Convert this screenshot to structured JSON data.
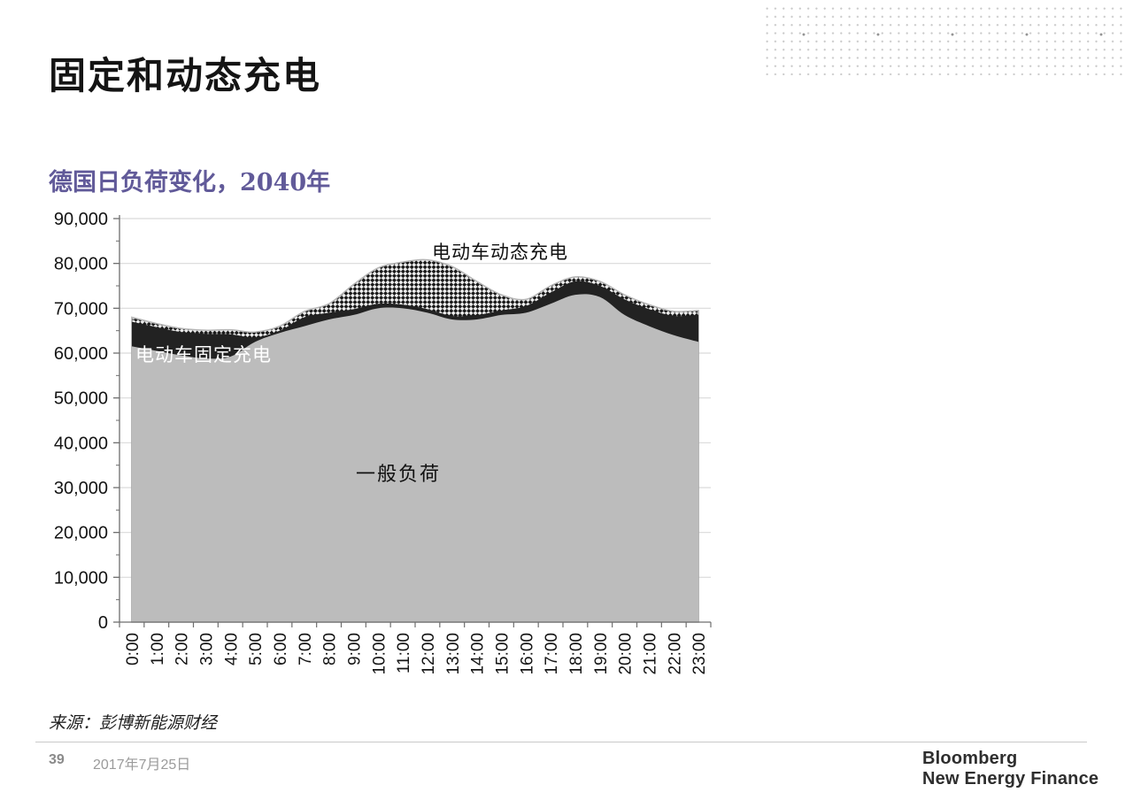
{
  "slide": {
    "title": "固定和动态充电",
    "subtitle": "德国日负荷变化，2040年",
    "source": "来源：彭博新能源财经",
    "footer": {
      "page_number": "39",
      "date": "2017年7月25日",
      "logo_line1": "Bloomberg",
      "logo_line2": "New Energy Finance"
    }
  },
  "colors": {
    "accent_purple": "#615a99",
    "area_gray": "#bcbcbc",
    "area_black": "#222222",
    "hatch_dark": "#1a1a1a",
    "hatch_light": "#ececec",
    "hatch_edge": "#b5b5b5",
    "gridline": "#d9d9d9",
    "axis": "#6e6e6e",
    "tick_label": "#141414"
  },
  "chart_data": {
    "type": "area",
    "stacked": true,
    "title": "德国日负荷变化，2040年",
    "xlabel": "",
    "ylabel": "",
    "ylim": [
      0,
      90000
    ],
    "y_tick_step": 10000,
    "y_minor_tick_step": 5000,
    "grid": true,
    "legend_position": "labels-inside-plot",
    "categories": [
      "0:00",
      "1:00",
      "2:00",
      "3:00",
      "4:00",
      "5:00",
      "6:00",
      "7:00",
      "8:00",
      "9:00",
      "10:00",
      "11:00",
      "12:00",
      "13:00",
      "14:00",
      "15:00",
      "16:00",
      "17:00",
      "18:00",
      "19:00",
      "20:00",
      "21:00",
      "22:00",
      "23:00"
    ],
    "series": [
      {
        "name": "一般负荷",
        "style": "solid-gray",
        "values": [
          61500,
          60500,
          59500,
          58800,
          59200,
          62500,
          64500,
          66000,
          67500,
          68500,
          70000,
          70000,
          69000,
          67500,
          67500,
          68500,
          69000,
          71000,
          73000,
          72500,
          68500,
          66000,
          64000,
          62500
        ]
      },
      {
        "name": "电动车固定充电",
        "style": "solid-black",
        "values": [
          5500,
          5300,
          5200,
          5500,
          5000,
          1000,
          500,
          2000,
          1500,
          1300,
          1000,
          800,
          800,
          800,
          1000,
          1000,
          1500,
          2500,
          3000,
          2500,
          3500,
          3800,
          4300,
          6000
        ]
      },
      {
        "name": "电动车动态充电",
        "style": "diagonal-crosshatch",
        "values": [
          1000,
          800,
          800,
          800,
          1000,
          1200,
          1000,
          1300,
          2000,
          5500,
          8000,
          9500,
          11000,
          11000,
          7500,
          3500,
          1500,
          1500,
          1000,
          1000,
          1000,
          1000,
          1000,
          1000
        ]
      }
    ]
  }
}
